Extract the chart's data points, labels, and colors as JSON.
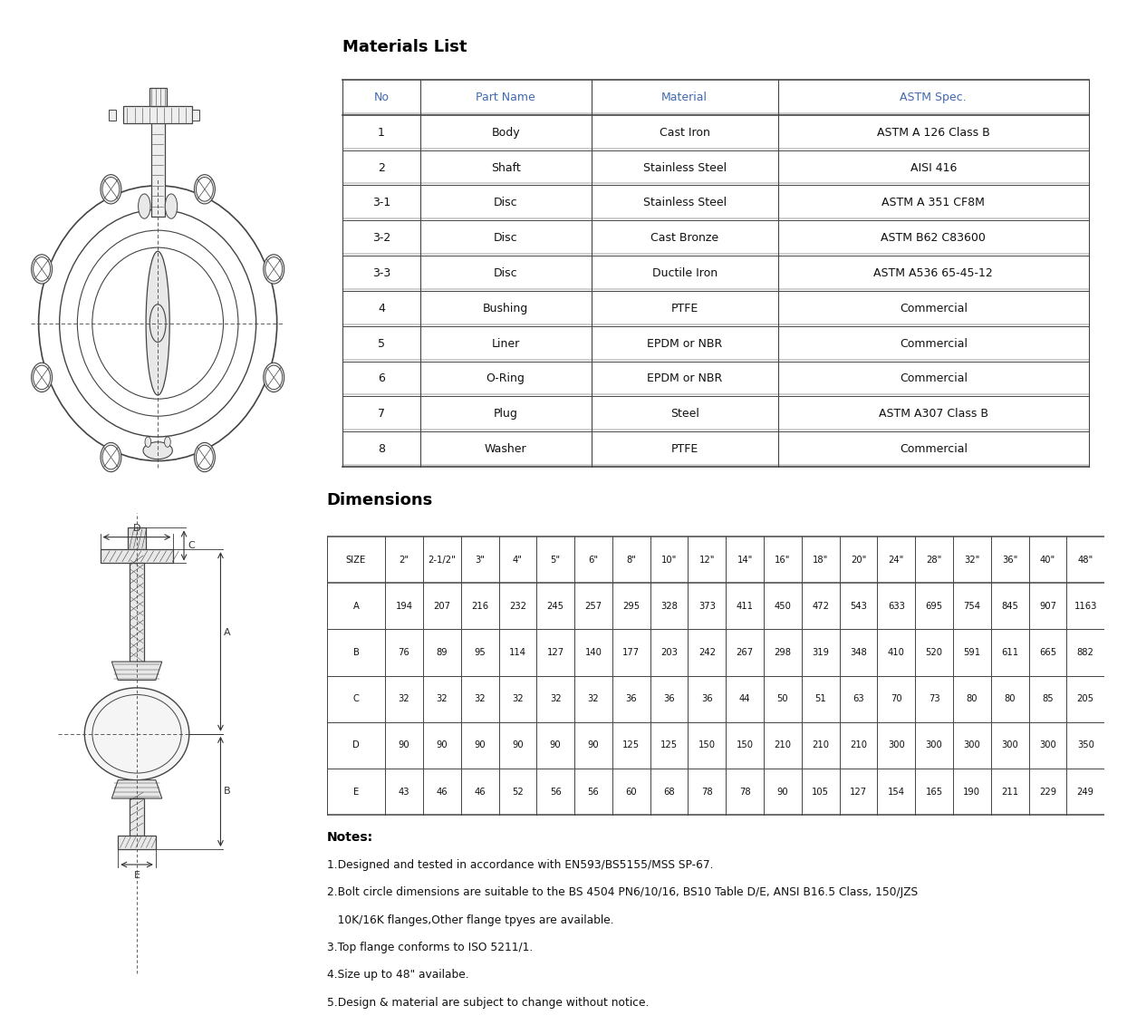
{
  "materials_title": "Materials List",
  "materials_headers": [
    "No",
    "Part Name",
    "Material",
    "ASTM Spec."
  ],
  "materials_rows": [
    [
      "1",
      "Body",
      "Cast Iron",
      "ASTM A 126 Class B"
    ],
    [
      "2",
      "Shaft",
      "Stainless Steel",
      "AISI 416"
    ],
    [
      "3-1",
      "Disc",
      "Stainless Steel",
      "ASTM A 351 CF8M"
    ],
    [
      "3-2",
      "Disc",
      "Cast Bronze",
      "ASTM B62 C83600"
    ],
    [
      "3-3",
      "Disc",
      "Ductile Iron",
      "ASTM A536 65-45-12"
    ],
    [
      "4",
      "Bushing",
      "PTFE",
      "Commercial"
    ],
    [
      "5",
      "Liner",
      "EPDM or NBR",
      "Commercial"
    ],
    [
      "6",
      "O-Ring",
      "EPDM or NBR",
      "Commercial"
    ],
    [
      "7",
      "Plug",
      "Steel",
      "ASTM A307 Class B"
    ],
    [
      "8",
      "Washer",
      "PTFE",
      "Commercial"
    ]
  ],
  "dimensions_title": "Dimensions",
  "dim_headers": [
    "SIZE",
    "2\"",
    "2-1/2\"",
    "3\"",
    "4\"",
    "5\"",
    "6\"",
    "8\"",
    "10\"",
    "12\"",
    "14\"",
    "16\"",
    "18\"",
    "20\"",
    "24\"",
    "28\"",
    "32\"",
    "36\"",
    "40\"",
    "48\""
  ],
  "dim_rows": [
    [
      "A",
      "194",
      "207",
      "216",
      "232",
      "245",
      "257",
      "295",
      "328",
      "373",
      "411",
      "450",
      "472",
      "543",
      "633",
      "695",
      "754",
      "845",
      "907",
      "1163"
    ],
    [
      "B",
      "76",
      "89",
      "95",
      "114",
      "127",
      "140",
      "177",
      "203",
      "242",
      "267",
      "298",
      "319",
      "348",
      "410",
      "520",
      "591",
      "611",
      "665",
      "882"
    ],
    [
      "C",
      "32",
      "32",
      "32",
      "32",
      "32",
      "32",
      "36",
      "36",
      "36",
      "44",
      "50",
      "51",
      "63",
      "70",
      "73",
      "80",
      "80",
      "85",
      "205"
    ],
    [
      "D",
      "90",
      "90",
      "90",
      "90",
      "90",
      "90",
      "125",
      "125",
      "150",
      "150",
      "210",
      "210",
      "210",
      "300",
      "300",
      "300",
      "300",
      "300",
      "350"
    ],
    [
      "E",
      "43",
      "46",
      "46",
      "52",
      "56",
      "56",
      "60",
      "68",
      "78",
      "78",
      "90",
      "105",
      "127",
      "154",
      "165",
      "190",
      "211",
      "229",
      "249"
    ]
  ],
  "notes_title": "Notes:",
  "notes": [
    "1.Designed and tested in accordance with EN593/BS5155/MSS SP-67.",
    "2.Bolt circle dimensions are suitable to the BS 4504 PN6/10/16, BS10 Table D/E, ANSI B16.5 Class, 150/JZS",
    "   10K/16K flanges,Other flange tpyes are available.",
    "3.Top flange conforms to ISO 5211/1.",
    "4.Size up to 48\" availabe.",
    "5.Design & material are subject to change without notice."
  ],
  "header_color": "#4169b0",
  "line_color": "#444444",
  "bg_color": "#ffffff",
  "text_color": "#111111"
}
